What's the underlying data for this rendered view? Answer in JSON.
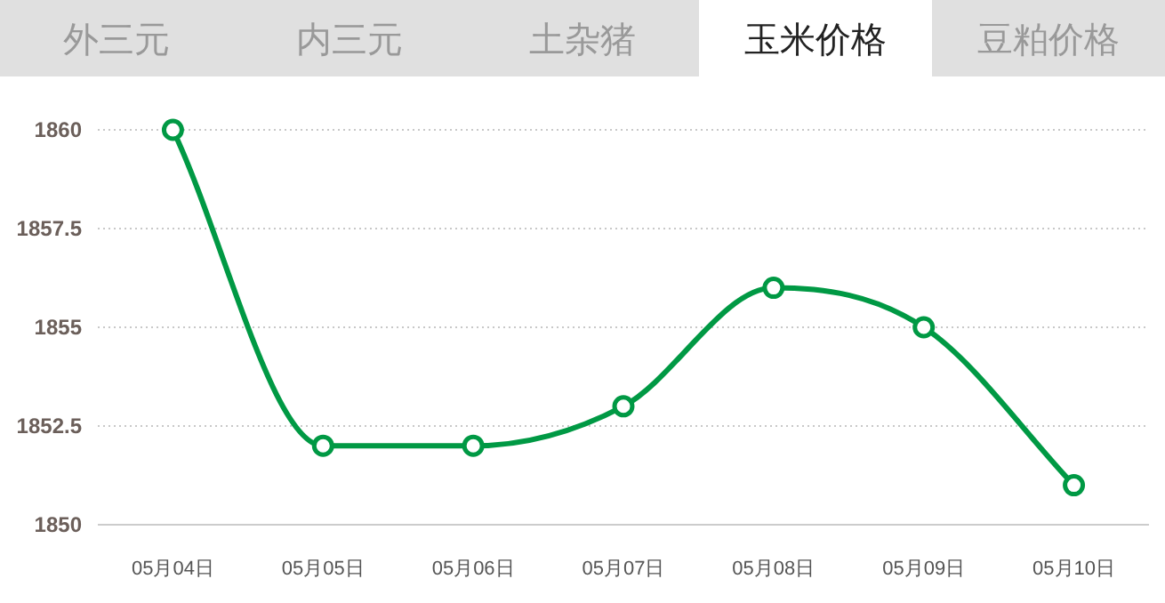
{
  "chart_data": [
    {
      "type": "other",
      "categories": [
        "外三元",
        "内三元",
        "土杂猪",
        "玉米价格",
        "豆粕价格"
      ],
      "colors": [
        "#e0e0e0",
        "#e0e0e0",
        "#e0e0e0",
        "#ffffff",
        "#e0e0e0"
      ]
    },
    {
      "type": "line",
      "categories": [
        "05月04日",
        "05月05日",
        "05月06日",
        "05月07日",
        "05月08日",
        "05月09日",
        "05月10日"
      ],
      "series": [
        {
          "color": "#009944",
          "values": [
            1860,
            1852,
            1852,
            1853,
            1856,
            1855,
            1851
          ]
        }
      ],
      "ylim": [
        1850,
        1860
      ],
      "yticks": [
        1850,
        1852.5,
        1855,
        1857.5,
        1860
      ],
      "grid": "y",
      "marker": "circle",
      "line_style": "solid"
    }
  ]
}
